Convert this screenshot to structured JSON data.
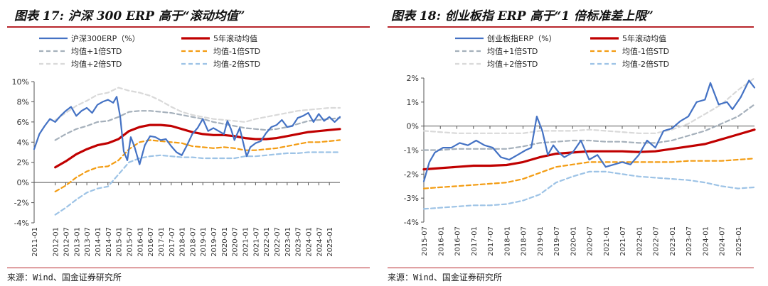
{
  "chart_data": [
    {
      "type": "line",
      "title": "图表 17: 沪深 300 ERP 高于“滚动均值”",
      "source": "来源：Wind、国金证券研究所",
      "ylim": [
        -4,
        10
      ],
      "yticks": [
        -4,
        -2,
        0,
        2,
        4,
        6,
        8,
        10
      ],
      "ytick_labels": [
        "-4%",
        "-2%",
        "0%",
        "2%",
        "4%",
        "6%",
        "8%",
        "10%"
      ],
      "xlim": [
        "2011-01",
        "2025-07"
      ],
      "xtick_labels": [
        "2011-01",
        "2012-01",
        "2012-07",
        "2013-01",
        "2013-07",
        "2014-01",
        "2014-07",
        "2015-01",
        "2015-07",
        "2016-01",
        "2016-07",
        "2017-01",
        "2017-07",
        "2018-01",
        "2018-07",
        "2019-01",
        "2019-07",
        "2020-01",
        "2020-07",
        "2021-01",
        "2021-07",
        "2022-01",
        "2022-07",
        "2023-01",
        "2023-07",
        "2024-01",
        "2024-07",
        "2025-01"
      ],
      "grid": false,
      "legend": "top",
      "series": [
        {
          "name": "沪深300ERP（%）",
          "color": "#4472c4",
          "style": "solid",
          "width": 2.2,
          "x": [
            "2011-01",
            "2011-04",
            "2011-07",
            "2011-10",
            "2012-01",
            "2012-04",
            "2012-07",
            "2012-10",
            "2013-01",
            "2013-04",
            "2013-07",
            "2013-10",
            "2014-01",
            "2014-04",
            "2014-07",
            "2014-10",
            "2014-12",
            "2015-02",
            "2015-04",
            "2015-06",
            "2015-08",
            "2015-10",
            "2016-01",
            "2016-04",
            "2016-07",
            "2016-10",
            "2017-01",
            "2017-04",
            "2017-07",
            "2017-10",
            "2018-01",
            "2018-04",
            "2018-07",
            "2018-10",
            "2019-01",
            "2019-04",
            "2019-07",
            "2019-10",
            "2020-01",
            "2020-03",
            "2020-05",
            "2020-07",
            "2020-10",
            "2021-01",
            "2021-02",
            "2021-04",
            "2021-07",
            "2021-10",
            "2022-01",
            "2022-04",
            "2022-07",
            "2022-10",
            "2023-01",
            "2023-04",
            "2023-07",
            "2023-10",
            "2024-01",
            "2024-04",
            "2024-07",
            "2024-10",
            "2025-01",
            "2025-04",
            "2025-07"
          ],
          "y": [
            3.3,
            4.8,
            5.6,
            6.3,
            6.0,
            6.6,
            7.1,
            7.5,
            6.6,
            7.1,
            7.4,
            6.9,
            7.7,
            8.0,
            8.2,
            7.9,
            8.5,
            6.5,
            3.1,
            2.2,
            4.5,
            3.6,
            1.8,
            3.7,
            4.6,
            4.5,
            4.2,
            4.3,
            3.6,
            3.0,
            2.7,
            3.7,
            4.8,
            5.4,
            6.3,
            5.1,
            5.4,
            5.1,
            4.8,
            6.1,
            5.3,
            4.2,
            5.4,
            3.2,
            2.6,
            3.5,
            3.9,
            4.1,
            4.9,
            5.5,
            5.7,
            6.2,
            5.5,
            5.6,
            6.4,
            6.6,
            6.9,
            6.0,
            6.8,
            6.1,
            6.5,
            6.0,
            6.5
          ]
        },
        {
          "name": "5年滚动均值",
          "color": "#c00000",
          "style": "solid",
          "width": 3.2,
          "x": [
            "2012-01",
            "2012-07",
            "2013-01",
            "2013-07",
            "2014-01",
            "2014-07",
            "2015-01",
            "2015-07",
            "2016-01",
            "2016-07",
            "2017-01",
            "2017-07",
            "2018-01",
            "2018-07",
            "2019-01",
            "2019-07",
            "2020-01",
            "2020-07",
            "2021-01",
            "2021-07",
            "2022-01",
            "2022-07",
            "2023-01",
            "2023-07",
            "2024-01",
            "2024-07",
            "2025-01",
            "2025-07"
          ],
          "y": [
            1.5,
            2.1,
            2.8,
            3.3,
            3.7,
            3.9,
            4.3,
            5.1,
            5.5,
            5.7,
            5.7,
            5.6,
            5.3,
            5.0,
            4.8,
            4.7,
            4.7,
            4.6,
            4.4,
            4.3,
            4.3,
            4.4,
            4.6,
            4.8,
            5.0,
            5.1,
            5.2,
            5.3
          ]
        },
        {
          "name": "均值+1倍STD",
          "color": "#a5b0bb",
          "style": "dashed",
          "width": 2.2,
          "x": [
            "2012-01",
            "2012-07",
            "2013-01",
            "2013-07",
            "2014-01",
            "2014-07",
            "2015-01",
            "2015-07",
            "2016-01",
            "2016-07",
            "2017-01",
            "2017-07",
            "2018-01",
            "2018-07",
            "2019-01",
            "2019-07",
            "2020-01",
            "2020-07",
            "2021-01",
            "2021-07",
            "2022-01",
            "2022-07",
            "2023-01",
            "2023-07",
            "2024-01",
            "2024-07",
            "2025-01",
            "2025-07"
          ],
          "y": [
            4.2,
            4.8,
            5.3,
            5.6,
            6.0,
            6.1,
            6.5,
            7.0,
            7.1,
            7.1,
            7.0,
            6.9,
            6.7,
            6.5,
            6.3,
            6.0,
            5.8,
            5.6,
            5.4,
            5.3,
            5.2,
            5.3,
            5.5,
            5.8,
            6.1,
            6.2,
            6.3,
            6.4
          ]
        },
        {
          "name": "均值-1倍STD",
          "color": "#f39c12",
          "style": "dashed",
          "width": 2.2,
          "x": [
            "2012-01",
            "2012-07",
            "2013-01",
            "2013-07",
            "2014-01",
            "2014-07",
            "2015-01",
            "2015-07",
            "2016-01",
            "2016-07",
            "2017-01",
            "2017-07",
            "2018-01",
            "2018-07",
            "2019-01",
            "2019-07",
            "2020-01",
            "2020-07",
            "2021-01",
            "2021-07",
            "2022-01",
            "2022-07",
            "2023-01",
            "2023-07",
            "2024-01",
            "2024-07",
            "2025-01",
            "2025-07"
          ],
          "y": [
            -0.9,
            -0.3,
            0.5,
            1.1,
            1.5,
            1.6,
            2.2,
            3.3,
            4.0,
            4.2,
            4.1,
            4.0,
            3.9,
            3.6,
            3.5,
            3.4,
            3.5,
            3.4,
            3.2,
            3.2,
            3.3,
            3.4,
            3.6,
            3.8,
            4.0,
            4.0,
            4.1,
            4.2
          ]
        },
        {
          "name": "均值+2倍STD",
          "color": "#d9d9d9",
          "style": "dashed",
          "width": 2.2,
          "x": [
            "2012-01",
            "2012-07",
            "2013-01",
            "2013-07",
            "2014-01",
            "2014-07",
            "2015-01",
            "2015-07",
            "2016-01",
            "2016-07",
            "2017-01",
            "2017-07",
            "2018-01",
            "2018-07",
            "2019-01",
            "2019-07",
            "2020-01",
            "2020-07",
            "2021-01",
            "2021-07",
            "2022-01",
            "2022-07",
            "2023-01",
            "2023-07",
            "2024-01",
            "2024-07",
            "2025-01",
            "2025-07"
          ],
          "y": [
            6.2,
            6.9,
            7.6,
            8.1,
            8.7,
            8.9,
            9.4,
            9.1,
            8.9,
            8.6,
            8.1,
            7.5,
            7.0,
            6.7,
            6.5,
            6.3,
            6.2,
            6.1,
            6.0,
            6.3,
            6.5,
            6.7,
            6.9,
            7.1,
            7.2,
            7.3,
            7.4,
            7.4
          ]
        },
        {
          "name": "均值-2倍STD",
          "color": "#9dc3e6",
          "style": "dashed",
          "width": 2.2,
          "x": [
            "2012-01",
            "2012-07",
            "2013-01",
            "2013-07",
            "2014-01",
            "2014-07",
            "2015-01",
            "2015-07",
            "2016-01",
            "2016-07",
            "2017-01",
            "2017-07",
            "2018-01",
            "2018-07",
            "2019-01",
            "2019-07",
            "2020-01",
            "2020-07",
            "2021-01",
            "2021-07",
            "2022-01",
            "2022-07",
            "2023-01",
            "2023-07",
            "2024-01",
            "2024-07",
            "2025-01",
            "2025-07"
          ],
          "y": [
            -3.2,
            -2.5,
            -1.7,
            -1.0,
            -0.6,
            -0.4,
            0.8,
            2.0,
            2.4,
            2.6,
            2.7,
            2.6,
            2.5,
            2.5,
            2.4,
            2.4,
            2.4,
            2.4,
            2.6,
            2.6,
            2.7,
            2.8,
            2.9,
            2.9,
            3.0,
            3.0,
            3.0,
            3.0
          ]
        }
      ]
    },
    {
      "type": "line",
      "title": "图表 18: 创业板指 ERP 高于“1 倍标准差上限”",
      "source": "来源：Wind、国金证券研究所",
      "ylim": [
        -4,
        2
      ],
      "yticks": [
        -4,
        -3,
        -2,
        -1,
        0,
        1,
        2
      ],
      "ytick_labels": [
        "-4%",
        "-3%",
        "-2%",
        "-1%",
        "0%",
        "1%",
        "2%"
      ],
      "xlim": [
        "2015-07",
        "2025-07"
      ],
      "xtick_labels": [
        "2015-07",
        "2016-01",
        "2016-07",
        "2017-01",
        "2017-07",
        "2018-01",
        "2018-07",
        "2019-01",
        "2019-07",
        "2020-01",
        "2020-07",
        "2021-01",
        "2021-07",
        "2022-01",
        "2022-07",
        "2023-01",
        "2023-07",
        "2024-01",
        "2024-07",
        "2025-01"
      ],
      "grid": false,
      "legend": "top",
      "series": [
        {
          "name": "创业板指ERP（%）",
          "color": "#4472c4",
          "style": "solid",
          "width": 2.2,
          "x": [
            "2015-07",
            "2015-09",
            "2015-11",
            "2016-02",
            "2016-05",
            "2016-08",
            "2016-11",
            "2017-02",
            "2017-05",
            "2017-08",
            "2017-11",
            "2018-02",
            "2018-05",
            "2018-08",
            "2018-10",
            "2018-12",
            "2019-02",
            "2019-04",
            "2019-06",
            "2019-08",
            "2019-10",
            "2020-01",
            "2020-04",
            "2020-07",
            "2020-10",
            "2021-01",
            "2021-04",
            "2021-07",
            "2021-10",
            "2022-01",
            "2022-04",
            "2022-07",
            "2022-10",
            "2023-01",
            "2023-04",
            "2023-07",
            "2023-10",
            "2024-01",
            "2024-03",
            "2024-06",
            "2024-09",
            "2024-11",
            "2025-02",
            "2025-05",
            "2025-07"
          ],
          "y": [
            -2.3,
            -1.5,
            -1.1,
            -0.9,
            -0.9,
            -0.7,
            -0.8,
            -0.6,
            -0.8,
            -0.9,
            -1.3,
            -1.4,
            -1.2,
            -1.0,
            -0.9,
            0.4,
            -0.2,
            -1.2,
            -0.8,
            -1.1,
            -1.3,
            -1.1,
            -0.6,
            -1.4,
            -1.2,
            -1.7,
            -1.6,
            -1.5,
            -1.6,
            -1.2,
            -0.6,
            -0.9,
            -0.2,
            -0.1,
            0.2,
            0.4,
            1.0,
            1.1,
            1.8,
            0.9,
            1.0,
            0.7,
            1.2,
            1.9,
            1.6
          ]
        },
        {
          "name": "5年滚动均值",
          "color": "#c00000",
          "style": "solid",
          "width": 3.2,
          "x": [
            "2015-07",
            "2016-01",
            "2016-07",
            "2017-01",
            "2017-07",
            "2018-01",
            "2018-07",
            "2019-01",
            "2019-07",
            "2020-01",
            "2020-07",
            "2021-01",
            "2021-07",
            "2022-01",
            "2022-07",
            "2023-01",
            "2023-07",
            "2024-01",
            "2024-07",
            "2025-01",
            "2025-07"
          ],
          "y": [
            -1.8,
            -1.75,
            -1.7,
            -1.65,
            -1.65,
            -1.62,
            -1.5,
            -1.3,
            -1.15,
            -1.1,
            -1.05,
            -1.05,
            -1.05,
            -1.08,
            -1.05,
            -0.95,
            -0.85,
            -0.75,
            -0.55,
            -0.35,
            -0.15
          ]
        },
        {
          "name": "均值+1倍STD",
          "color": "#a5b0bb",
          "style": "dashed",
          "width": 2.2,
          "x": [
            "2015-07",
            "2016-01",
            "2016-07",
            "2017-01",
            "2017-07",
            "2018-01",
            "2018-07",
            "2019-01",
            "2019-07",
            "2020-01",
            "2020-07",
            "2021-01",
            "2021-07",
            "2022-01",
            "2022-07",
            "2023-01",
            "2023-07",
            "2024-01",
            "2024-07",
            "2025-01",
            "2025-07"
          ],
          "y": [
            -1.0,
            -1.0,
            -0.95,
            -0.95,
            -0.95,
            -0.95,
            -0.85,
            -0.7,
            -0.65,
            -0.6,
            -0.6,
            -0.65,
            -0.65,
            -0.7,
            -0.7,
            -0.6,
            -0.4,
            -0.2,
            0.1,
            0.4,
            0.9
          ]
        },
        {
          "name": "均值-1倍STD",
          "color": "#f39c12",
          "style": "dashed",
          "width": 2.2,
          "x": [
            "2015-07",
            "2016-01",
            "2016-07",
            "2017-01",
            "2017-07",
            "2018-01",
            "2018-07",
            "2019-01",
            "2019-07",
            "2020-01",
            "2020-07",
            "2021-01",
            "2021-07",
            "2022-01",
            "2022-07",
            "2023-01",
            "2023-07",
            "2024-01",
            "2024-07",
            "2025-01",
            "2025-07"
          ],
          "y": [
            -2.6,
            -2.55,
            -2.5,
            -2.45,
            -2.4,
            -2.35,
            -2.2,
            -1.95,
            -1.7,
            -1.6,
            -1.5,
            -1.5,
            -1.5,
            -1.5,
            -1.5,
            -1.5,
            -1.45,
            -1.45,
            -1.45,
            -1.4,
            -1.35
          ]
        },
        {
          "name": "均值+2倍STD",
          "color": "#d9d9d9",
          "style": "dashed",
          "width": 2.2,
          "x": [
            "2015-07",
            "2016-01",
            "2016-07",
            "2017-01",
            "2017-07",
            "2018-01",
            "2018-07",
            "2019-01",
            "2019-07",
            "2020-01",
            "2020-07",
            "2021-01",
            "2021-07",
            "2022-01",
            "2022-07",
            "2023-01",
            "2023-07",
            "2024-01",
            "2024-07",
            "2025-01",
            "2025-07"
          ],
          "y": [
            -0.2,
            -0.25,
            -0.3,
            -0.3,
            -0.3,
            -0.3,
            -0.3,
            -0.2,
            -0.2,
            -0.2,
            -0.15,
            -0.2,
            -0.25,
            -0.3,
            -0.3,
            -0.15,
            0.1,
            0.5,
            0.9,
            1.5,
            2.0
          ]
        },
        {
          "name": "均值-2倍STD",
          "color": "#9dc3e6",
          "style": "dashed",
          "width": 2.2,
          "x": [
            "2015-07",
            "2016-01",
            "2016-07",
            "2017-01",
            "2017-07",
            "2018-01",
            "2018-07",
            "2019-01",
            "2019-07",
            "2020-01",
            "2020-07",
            "2021-01",
            "2021-07",
            "2022-01",
            "2022-07",
            "2023-01",
            "2023-07",
            "2024-01",
            "2024-07",
            "2025-01",
            "2025-07"
          ],
          "y": [
            -3.45,
            -3.4,
            -3.35,
            -3.3,
            -3.3,
            -3.25,
            -3.1,
            -2.85,
            -2.35,
            -2.1,
            -1.9,
            -1.9,
            -2.0,
            -2.1,
            -2.15,
            -2.2,
            -2.25,
            -2.35,
            -2.5,
            -2.6,
            -2.55
          ]
        }
      ]
    }
  ]
}
